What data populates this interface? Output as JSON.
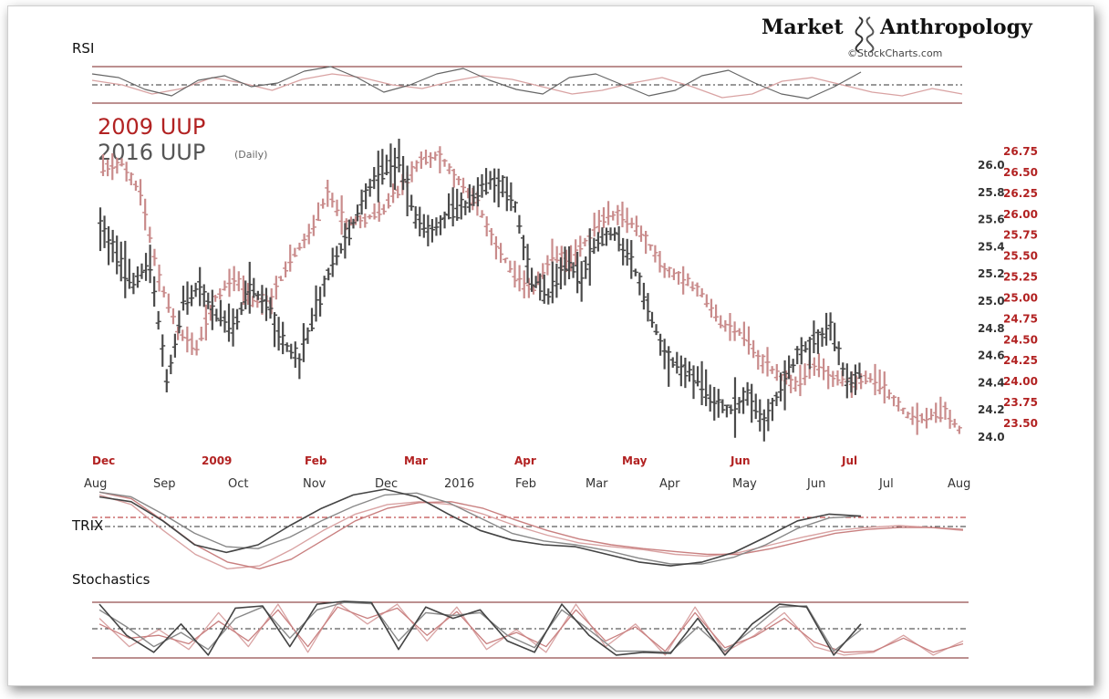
{
  "brand": {
    "name_left": "Market",
    "name_right": "Anthropology",
    "credit": "©StockCharts.com"
  },
  "colors": {
    "series_2009": "#b22222",
    "series_2016": "#555555",
    "bars_2009": "#c98b8b",
    "bars_2016": "#4a4a4a",
    "indicator_line": "#7a2222"
  },
  "chart_data": [
    {
      "type": "line",
      "panel": "RSI",
      "title": "RSI",
      "series": [
        {
          "name": "",
          "values": [
            62,
            58,
            45,
            38,
            55,
            60,
            48,
            52,
            65,
            70,
            58,
            42,
            50,
            62,
            68,
            55,
            45,
            40,
            58,
            62,
            50,
            38,
            44,
            60,
            66,
            52,
            40,
            35,
            48,
            64
          ]
        },
        {
          "name": "",
          "values": [
            55,
            50,
            40,
            46,
            58,
            52,
            44,
            56,
            62,
            58,
            50,
            46,
            54,
            60,
            56,
            48,
            40,
            44,
            52,
            58,
            48,
            36,
            40,
            54,
            58,
            50,
            42,
            38,
            46,
            40
          ]
        }
      ],
      "levels": [
        70,
        50,
        30
      ]
    },
    {
      "type": "bar",
      "panel": "Price",
      "series": [
        {
          "name": "2009 UUP",
          "color": "#b22222"
        },
        {
          "name": "2016 UUP",
          "note": "(Daily)",
          "color": "#555555"
        }
      ],
      "ylim_left": [
        24.0,
        26.0
      ],
      "ylim_right": [
        23.5,
        26.75
      ],
      "yticks_left": [
        "26.0",
        "25.8",
        "25.6",
        "25.4",
        "25.2",
        "25.0",
        "24.8",
        "24.6",
        "24.4",
        "24.2",
        "24.0"
      ],
      "yticks_right": [
        "26.75",
        "26.50",
        "26.25",
        "26.00",
        "25.75",
        "25.50",
        "25.25",
        "25.00",
        "24.75",
        "24.50",
        "24.25",
        "24.00",
        "23.75",
        "23.50"
      ],
      "xticks_top": [
        "Dec",
        "2009",
        "Feb",
        "Mar",
        "Apr",
        "May",
        "Jun",
        "Jul"
      ],
      "xticks_bottom": [
        "Aug",
        "Sep",
        "Oct",
        "Nov",
        "Dec",
        "2016",
        "Feb",
        "Mar",
        "Apr",
        "May",
        "Jun",
        "Jul",
        "Aug"
      ],
      "price_2016": [
        25.55,
        25.35,
        25.1,
        25.3,
        24.4,
        25.0,
        25.1,
        24.9,
        24.8,
        25.1,
        25.0,
        24.7,
        24.55,
        24.95,
        25.3,
        25.5,
        25.8,
        25.95,
        26.05,
        25.6,
        25.5,
        25.65,
        25.7,
        25.85,
        25.9,
        25.7,
        25.15,
        25.05,
        25.25,
        25.2,
        25.45,
        25.5,
        25.3,
        24.95,
        24.6,
        24.5,
        24.45,
        24.25,
        24.2,
        24.3,
        24.1,
        24.35,
        24.6,
        24.7,
        24.8,
        24.4,
        24.5
      ],
      "price_2009": [
        26.55,
        26.6,
        26.25,
        25.25,
        24.6,
        24.4,
        25.0,
        25.25,
        24.95,
        25.0,
        25.45,
        25.75,
        26.25,
        25.9,
        25.95,
        26.05,
        26.35,
        26.65,
        26.7,
        26.4,
        26.1,
        25.65,
        25.25,
        25.1,
        25.5,
        25.45,
        25.75,
        26.0,
        25.95,
        25.7,
        25.35,
        25.25,
        25.05,
        24.7,
        24.6,
        24.3,
        24.1,
        23.95,
        24.2,
        24.05,
        24.0,
        24.05,
        23.85,
        23.6,
        23.55,
        23.65,
        23.35
      ]
    },
    {
      "type": "line",
      "panel": "TRIX",
      "title": "TRIX",
      "series": [
        {
          "name": "",
          "values": [
            0.3,
            0.25,
            0.05,
            -0.2,
            -0.28,
            -0.2,
            0.0,
            0.18,
            0.32,
            0.38,
            0.3,
            0.12,
            -0.05,
            -0.15,
            -0.2,
            -0.22,
            -0.3,
            -0.38,
            -0.42,
            -0.38,
            -0.28,
            -0.12,
            0.05,
            0.12,
            0.1
          ]
        },
        {
          "name": "",
          "values": [
            0.35,
            0.3,
            0.12,
            -0.08,
            -0.22,
            -0.24,
            -0.12,
            0.05,
            0.2,
            0.32,
            0.34,
            0.24,
            0.08,
            -0.08,
            -0.16,
            -0.2,
            -0.26,
            -0.34,
            -0.4,
            -0.4,
            -0.33,
            -0.2,
            -0.03,
            0.08,
            0.1
          ]
        },
        {
          "name": "",
          "values": [
            0.32,
            0.22,
            -0.05,
            -0.3,
            -0.45,
            -0.42,
            -0.25,
            -0.05,
            0.12,
            0.22,
            0.25,
            0.22,
            0.12,
            0.0,
            -0.1,
            -0.18,
            -0.22,
            -0.25,
            -0.3,
            -0.32,
            -0.28,
            -0.2,
            -0.12,
            -0.05,
            -0.02,
            0.0,
            -0.02,
            -0.05
          ]
        },
        {
          "name": "",
          "values": [
            0.35,
            0.28,
            0.05,
            -0.2,
            -0.38,
            -0.45,
            -0.35,
            -0.15,
            0.05,
            0.18,
            0.24,
            0.25,
            0.18,
            0.06,
            -0.05,
            -0.14,
            -0.2,
            -0.24,
            -0.27,
            -0.3,
            -0.3,
            -0.24,
            -0.16,
            -0.08,
            -0.04,
            -0.02,
            -0.02,
            -0.04
          ]
        }
      ]
    },
    {
      "type": "line",
      "panel": "Stochastics",
      "title": "Stochastics",
      "series": [
        {
          "name": "",
          "values": [
            95,
            40,
            10,
            60,
            5,
            88,
            92,
            20,
            95,
            100,
            98,
            15,
            90,
            70,
            85,
            30,
            10,
            95,
            40,
            5,
            10,
            8,
            70,
            5,
            60,
            95,
            90,
            5,
            60
          ]
        },
        {
          "name": "",
          "values": [
            85,
            55,
            20,
            45,
            15,
            70,
            90,
            35,
            85,
            98,
            96,
            30,
            80,
            75,
            80,
            40,
            18,
            85,
            50,
            12,
            12,
            10,
            55,
            12,
            50,
            90,
            92,
            12,
            50
          ]
        },
        {
          "name": "",
          "values": [
            70,
            20,
            50,
            15,
            80,
            20,
            95,
            10,
            98,
            60,
            95,
            30,
            90,
            15,
            50,
            10,
            95,
            20,
            60,
            5,
            90,
            10,
            40,
            80,
            20,
            5,
            10,
            40,
            5,
            30
          ]
        },
        {
          "name": "",
          "values": [
            60,
            35,
            40,
            25,
            65,
            30,
            85,
            20,
            90,
            70,
            88,
            40,
            82,
            25,
            45,
            20,
            85,
            30,
            55,
            12,
            80,
            18,
            38,
            70,
            28,
            10,
            12,
            35,
            10,
            25
          ]
        }
      ],
      "levels": [
        80,
        50,
        20
      ]
    }
  ]
}
